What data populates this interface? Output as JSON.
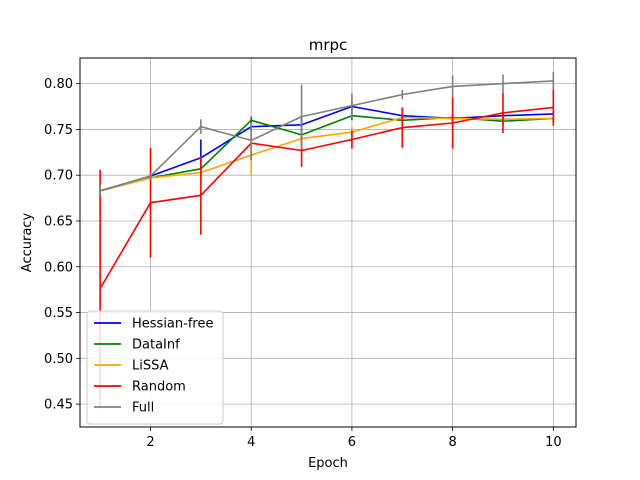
{
  "chart_data": {
    "type": "line",
    "title": "mrpc",
    "xlabel": "Epoch",
    "ylabel": "Accuracy",
    "xlim": [
      0.6,
      10.45
    ],
    "ylim": [
      0.425,
      0.828
    ],
    "xticks": [
      2,
      4,
      6,
      8,
      10
    ],
    "yticks": [
      0.45,
      0.5,
      0.55,
      0.6,
      0.65,
      0.7,
      0.75,
      0.8
    ],
    "grid": true,
    "legend_position": "lower-left",
    "x": [
      1,
      2,
      3,
      4,
      5,
      6,
      7,
      8,
      9,
      10
    ],
    "series": [
      {
        "name": "Hessian-free",
        "color": "#0000ff",
        "values": [
          0.683,
          0.699,
          0.719,
          0.753,
          0.755,
          0.775,
          0.765,
          0.762,
          0.765,
          0.767
        ],
        "errors": [
          0.008,
          0.005,
          0.02,
          0.005,
          0.01,
          0.005,
          0.004,
          0.004,
          0.004,
          0.004
        ]
      },
      {
        "name": "DataInf",
        "color": "#008000",
        "values": [
          0.683,
          0.697,
          0.707,
          0.76,
          0.744,
          0.765,
          0.76,
          0.763,
          0.759,
          0.762
        ],
        "errors": [
          0.008,
          0.004,
          0.004,
          0.004,
          0.005,
          0.005,
          0.004,
          0.004,
          0.004,
          0.004
        ]
      },
      {
        "name": "LiSSA",
        "color": "#ffa500",
        "values": [
          0.683,
          0.697,
          0.703,
          0.722,
          0.74,
          0.747,
          0.763,
          0.762,
          0.761,
          0.762
        ],
        "errors": [
          0.008,
          0.004,
          0.005,
          0.023,
          0.007,
          0.005,
          0.004,
          0.004,
          0.004,
          0.004
        ]
      },
      {
        "name": "Random",
        "color": "#ff0000",
        "values": [
          0.576,
          0.67,
          0.678,
          0.735,
          0.727,
          0.739,
          0.752,
          0.757,
          0.768,
          0.774
        ],
        "errors": [
          0.13,
          0.06,
          0.043,
          0.018,
          0.018,
          0.01,
          0.022,
          0.028,
          0.022,
          0.02
        ]
      },
      {
        "name": "Full",
        "color": "#808080",
        "values": [
          0.683,
          0.699,
          0.753,
          0.738,
          0.764,
          0.776,
          0.788,
          0.797,
          0.8,
          0.803
        ],
        "errors": [
          0.007,
          0.004,
          0.008,
          0.02,
          0.035,
          0.013,
          0.005,
          0.012,
          0.01,
          0.01
        ]
      }
    ]
  }
}
